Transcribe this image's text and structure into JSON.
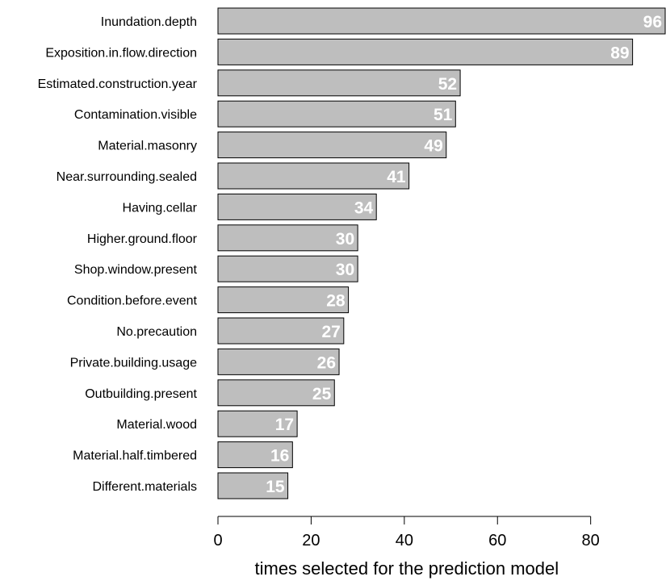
{
  "chart_data": {
    "type": "bar",
    "orientation": "horizontal",
    "categories": [
      "Inundation.depth",
      "Exposition.in.flow.direction",
      "Estimated.construction.year",
      "Contamination.visible",
      "Material.masonry",
      "Near.surrounding.sealed",
      "Having.cellar",
      "Higher.ground.floor",
      "Shop.window.present",
      "Condition.before.event",
      "No.precaution",
      "Private.building.usage",
      "Outbuilding.present",
      "Material.wood",
      "Material.half.timbered",
      "Different.materials"
    ],
    "values": [
      96,
      89,
      52,
      51,
      49,
      41,
      34,
      30,
      30,
      28,
      27,
      26,
      25,
      17,
      16,
      15
    ],
    "title": "",
    "xlabel": "times selected for the prediction model",
    "ylabel": "",
    "xlim": [
      0,
      96
    ],
    "xticks": [
      0,
      20,
      40,
      60,
      80
    ],
    "grid": false,
    "bar_color": "#bebebe",
    "bar_edge_color": "#000000",
    "value_label_color": "#ffffff"
  }
}
